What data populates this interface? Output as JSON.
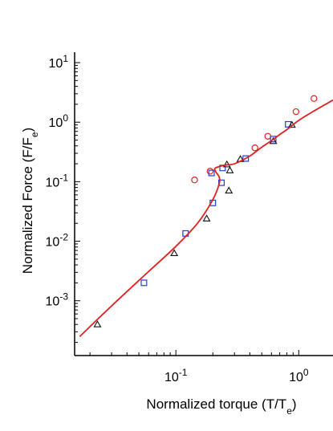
{
  "chart_data": {
    "type": "scatter",
    "title": "",
    "xlabel": {
      "prefix": "Normalized torque  (T/T",
      "sub": "e",
      "suffix": ")"
    },
    "ylabel": {
      "prefix": "Normalized Force  (F/F",
      "sub": "e",
      "suffix": ")"
    },
    "x_scale": "log",
    "y_scale": "log",
    "xlim": [
      0.015,
      1.9
    ],
    "ylim": [
      0.00012,
      15
    ],
    "x_ticks": [
      {
        "value": 0.1,
        "base": "10",
        "exp": "-1"
      },
      {
        "value": 1,
        "base": "10",
        "exp": "0"
      }
    ],
    "y_ticks": [
      {
        "value": 0.001,
        "base": "10",
        "exp": "-3"
      },
      {
        "value": 0.01,
        "base": "10",
        "exp": "-2"
      },
      {
        "value": 0.1,
        "base": "10",
        "exp": "-1"
      },
      {
        "value": 1,
        "base": "10",
        "exp": "0"
      },
      {
        "value": 10,
        "base": "10",
        "exp": "1"
      }
    ],
    "grid": false,
    "legend": "none",
    "series": [
      {
        "marker": "circle",
        "color": "#e0201e",
        "points": [
          [
            0.142,
            0.107
          ],
          [
            0.19,
            0.15
          ],
          [
            0.44,
            0.37
          ],
          [
            0.56,
            0.58
          ],
          [
            0.95,
            1.5
          ],
          [
            1.33,
            2.5
          ]
        ]
      },
      {
        "marker": "square",
        "color": "#1f3fd1",
        "points": [
          [
            0.055,
            0.002
          ],
          [
            0.12,
            0.0135
          ],
          [
            0.195,
            0.14
          ],
          [
            0.2,
            0.044
          ],
          [
            0.235,
            0.096
          ],
          [
            0.24,
            0.17
          ],
          [
            0.37,
            0.245
          ],
          [
            0.62,
            0.52
          ],
          [
            0.82,
            0.92
          ]
        ]
      },
      {
        "marker": "triangle",
        "color": "#111111",
        "points": [
          [
            0.023,
            0.0004
          ],
          [
            0.097,
            0.0063
          ],
          [
            0.178,
            0.024
          ],
          [
            0.26,
            0.195
          ],
          [
            0.27,
            0.071
          ],
          [
            0.275,
            0.155
          ],
          [
            0.335,
            0.24
          ],
          [
            0.62,
            0.48
          ],
          [
            0.88,
            0.9
          ]
        ]
      },
      {
        "marker": "line",
        "color": "#e0201e",
        "points": [
          [
            0.0165,
            0.00025
          ],
          [
            0.03,
            0.00082
          ],
          [
            0.06,
            0.0031
          ],
          [
            0.1,
            0.0082
          ],
          [
            0.15,
            0.02
          ],
          [
            0.2,
            0.05
          ],
          [
            0.225,
            0.092
          ],
          [
            0.225,
            0.12
          ],
          [
            0.21,
            0.15
          ],
          [
            0.21,
            0.17
          ],
          [
            0.25,
            0.19
          ],
          [
            0.3,
            0.2
          ],
          [
            0.4,
            0.27
          ],
          [
            0.5,
            0.38
          ],
          [
            0.6,
            0.49
          ],
          [
            0.7,
            0.62
          ],
          [
            0.8,
            0.75
          ],
          [
            1.0,
            1.07
          ],
          [
            1.3,
            1.5
          ],
          [
            1.9,
            2.35
          ]
        ]
      }
    ]
  }
}
